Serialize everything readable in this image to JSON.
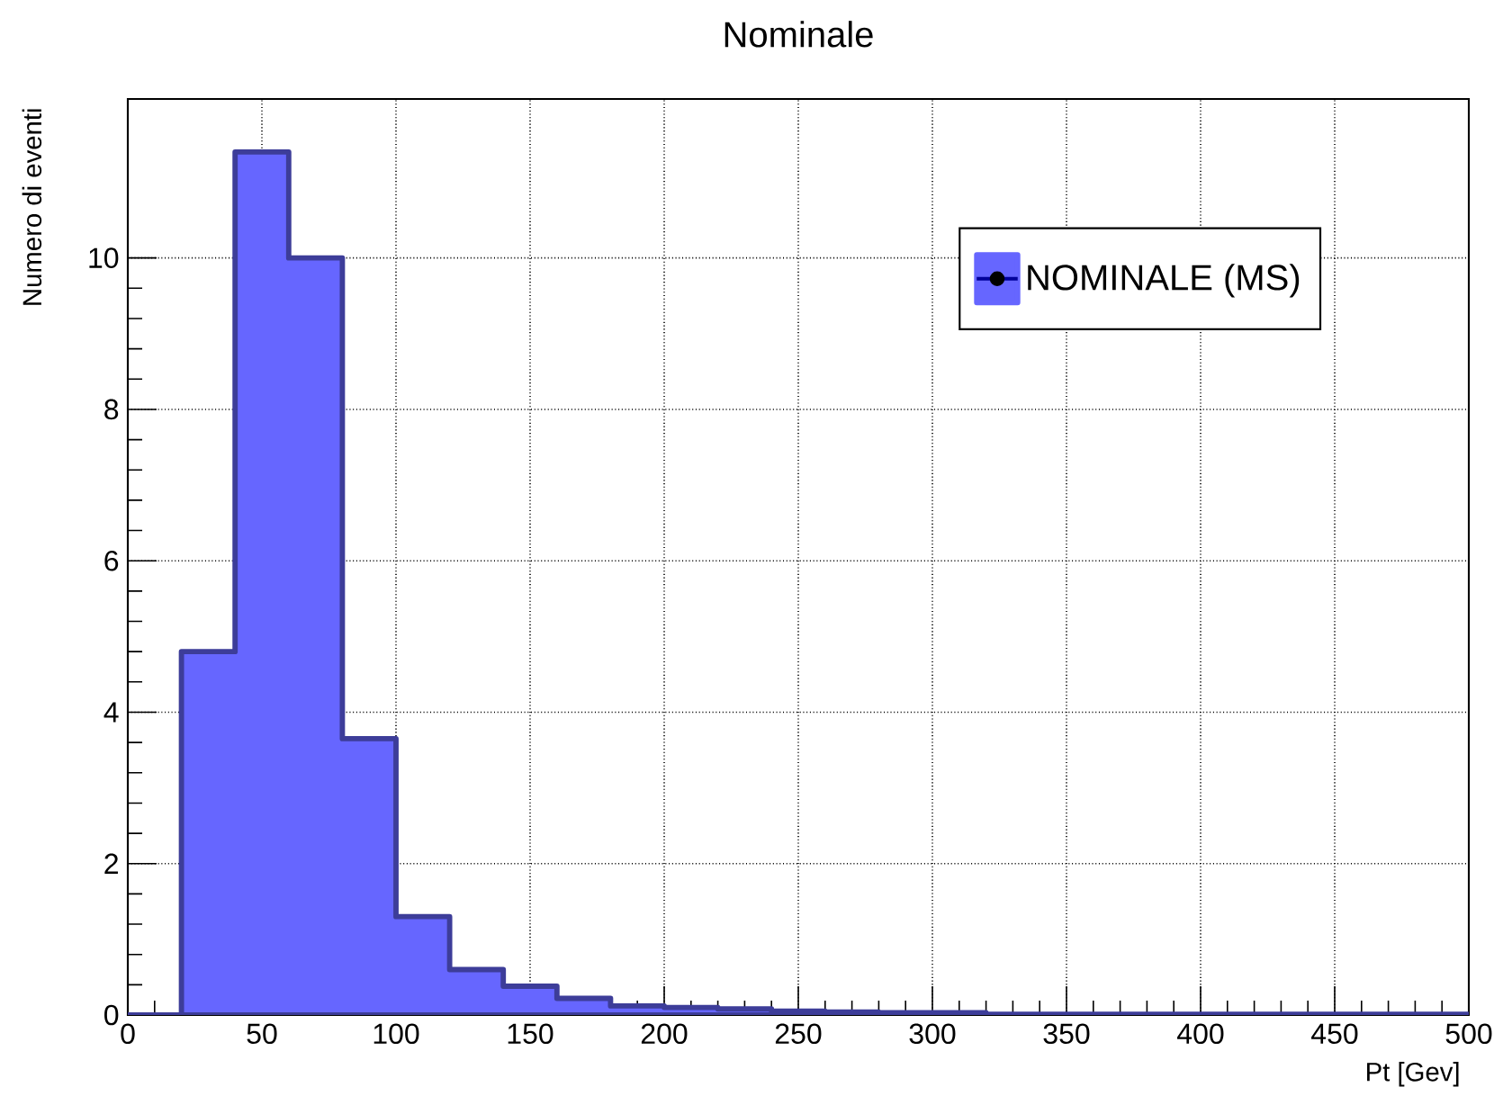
{
  "chart_data": {
    "type": "histogram",
    "title": "Nominale",
    "xlabel": "Pt [Gev]",
    "ylabel": "Numero di eventi",
    "bins": [
      0,
      20,
      40,
      60,
      80,
      100,
      120,
      140,
      160,
      180,
      200,
      220,
      240,
      260,
      280,
      300,
      320,
      340,
      360,
      380,
      400,
      420,
      440,
      460,
      480,
      500
    ],
    "series": [
      {
        "name": "NOMINALE (MS)",
        "color": "#6666ff",
        "values": [
          0,
          4.8,
          11.4,
          10.0,
          3.65,
          1.3,
          0.6,
          0.38,
          0.22,
          0.12,
          0.1,
          0.08,
          0.05,
          0.04,
          0.03,
          0.03,
          0.01,
          0.01,
          0.01,
          0.01,
          0.01,
          0.01,
          0.01,
          0.01,
          0.01
        ]
      }
    ],
    "xlim": [
      0,
      500
    ],
    "ylim": [
      0,
      12.1
    ],
    "xticks": [
      0,
      50,
      100,
      150,
      200,
      250,
      300,
      350,
      400,
      450,
      500
    ],
    "yticks": [
      0,
      2,
      4,
      6,
      8,
      10
    ],
    "grid": true,
    "legend": "top right"
  }
}
